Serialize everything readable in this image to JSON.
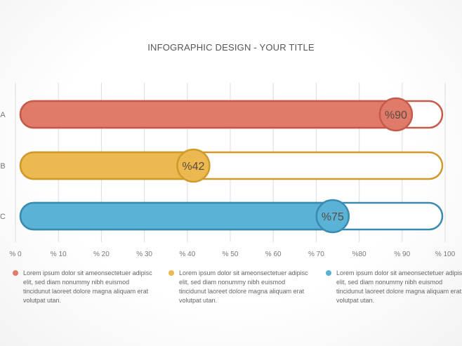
{
  "chart_data": {
    "type": "bar",
    "orientation": "horizontal",
    "title": "INFOGRAPHIC DESIGN - YOUR TITLE",
    "categories": [
      "A",
      "B",
      "C"
    ],
    "values": [
      90,
      42,
      75
    ],
    "value_labels": [
      "%90",
      "%42",
      "%75"
    ],
    "colors": [
      "#e07b6a",
      "#ebb94f",
      "#5ab3d6"
    ],
    "dark_colors": [
      "#c65a4a",
      "#cf9a2c",
      "#3a8bb0"
    ],
    "xlim": [
      0,
      100
    ],
    "x_ticks": [
      0,
      10,
      20,
      30,
      40,
      50,
      60,
      70,
      80,
      90,
      100
    ],
    "x_tick_labels": [
      "% 0",
      "% 10",
      "% 20",
      "% 30",
      "% 40",
      "% 50",
      "% 60",
      "% 70",
      "%80",
      "% 90",
      "% 100"
    ],
    "grid": true,
    "legend_position": "bottom",
    "legend": [
      "Lorem ipsum dolor sit ameonsectetuer adipisc elit, sed diam nonummy nibh euismod tincidunut laoreet dolore magna aliquam erat volutpat utan.",
      "Lorem ipsum dolor sit ameonsectetuer adipisc elit, sed diam nonummy nibh euismod tincidunut laoreet dolore magna aliquam erat volutpat utan.",
      "Lorem ipsum dolor sit ameonsectetuer adipisc elit, sed diam nonummy nibh euismod tincidunut laoreet dolore magna aliquam erat volutpat utan."
    ]
  }
}
